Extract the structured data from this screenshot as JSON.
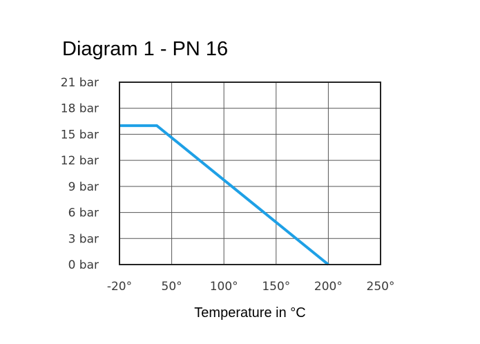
{
  "chart_data": {
    "type": "line",
    "title": "Diagram 1 - PN 16",
    "xlabel": "Temperature in °C",
    "ylabel": "",
    "x_ticks": [
      "-20°",
      "50°",
      "100°",
      "150°",
      "200°",
      "250°"
    ],
    "x_tick_values": [
      -20,
      50,
      100,
      150,
      200,
      250
    ],
    "y_ticks": [
      "0 bar",
      "3 bar",
      "6 bar",
      "9 bar",
      "12 bar",
      "15 bar",
      "18 bar",
      "21 bar"
    ],
    "y_tick_values": [
      0,
      3,
      6,
      9,
      12,
      15,
      18,
      21
    ],
    "xlim": [
      -20,
      250
    ],
    "ylim": [
      0,
      21
    ],
    "grid": true,
    "series": [
      {
        "x": [
          -20,
          30,
          200
        ],
        "y": [
          16,
          16,
          0
        ],
        "color": "#1ea0e6"
      }
    ]
  }
}
